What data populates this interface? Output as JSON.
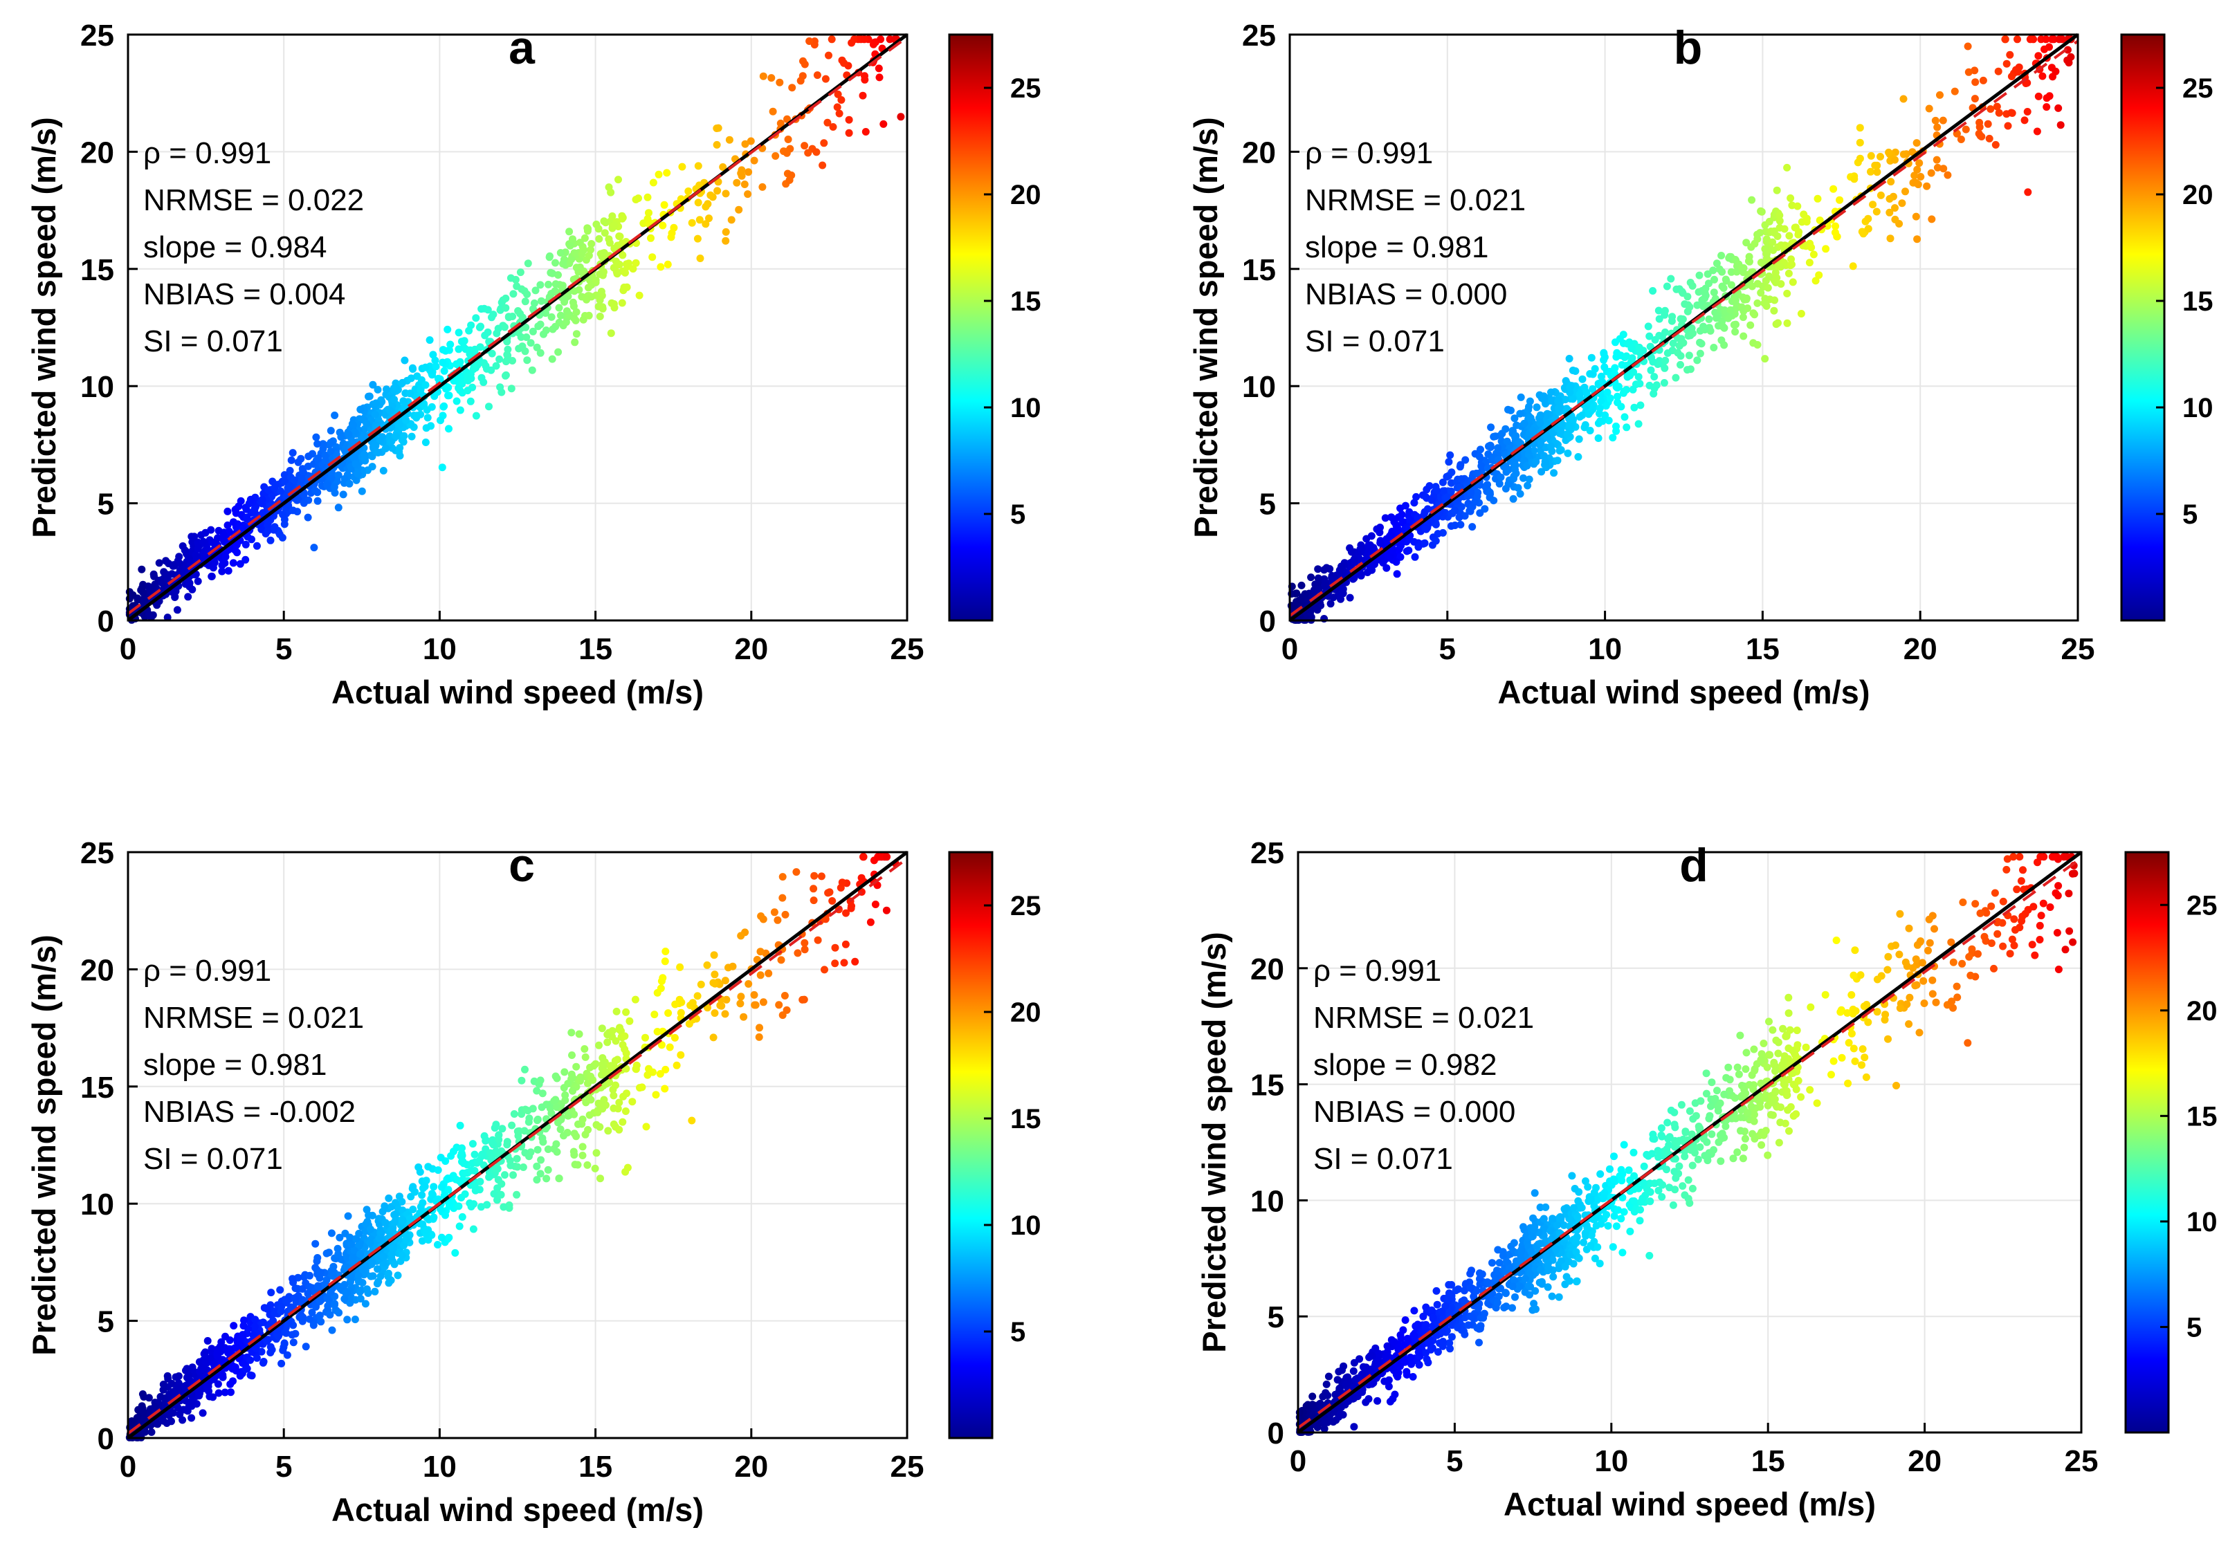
{
  "figure": {
    "colormap": "jet",
    "colors": {
      "identity_line": "#000000",
      "fit_line": "#e02020",
      "grid": "#e6e6e6",
      "axes": "#000000"
    },
    "colorbar": {
      "range": [
        0,
        27.5
      ],
      "ticks": [
        "5",
        "10",
        "15",
        "20",
        "25"
      ]
    }
  },
  "chart_data": [
    {
      "type": "scatter",
      "panel_label": "a",
      "xlabel": "Actual wind speed (m/s)",
      "ylabel": "Predicted wind speed (m/s)",
      "xlim": [
        0,
        25
      ],
      "ylim": [
        0,
        25
      ],
      "xticks": [
        "0",
        "5",
        "10",
        "15",
        "20",
        "25"
      ],
      "yticks": [
        "0",
        "5",
        "10",
        "15",
        "20",
        "25"
      ],
      "grid": true,
      "identity_line": [
        [
          0,
          0
        ],
        [
          25,
          25
        ]
      ],
      "fit_line": {
        "slope": 0.984,
        "intercept": 0.29
      },
      "color_by": "actual wind speed",
      "stats": [
        "ρ = 0.991",
        "NRMSE = 0.022",
        "slope = 0.984",
        "NBIAS = 0.004",
        "SI = 0.071"
      ]
    },
    {
      "type": "scatter",
      "panel_label": "b",
      "xlabel": "Actual wind speed (m/s)",
      "ylabel": "Predicted wind speed (m/s)",
      "xlim": [
        0,
        25
      ],
      "ylim": [
        0,
        25
      ],
      "xticks": [
        "0",
        "5",
        "10",
        "15",
        "20",
        "25"
      ],
      "yticks": [
        "0",
        "5",
        "10",
        "15",
        "20",
        "25"
      ],
      "grid": true,
      "identity_line": [
        [
          0,
          0
        ],
        [
          25,
          25
        ]
      ],
      "fit_line": {
        "slope": 0.981,
        "intercept": 0.2
      },
      "color_by": "actual wind speed",
      "stats": [
        "ρ = 0.991",
        "NRMSE = 0.021",
        "slope = 0.981",
        "NBIAS = 0.000",
        "SI = 0.071"
      ]
    },
    {
      "type": "scatter",
      "panel_label": "c",
      "xlabel": "Actual wind speed (m/s)",
      "ylabel": "Predicted wind speed (m/s)",
      "xlim": [
        0,
        25
      ],
      "ylim": [
        0,
        25
      ],
      "xticks": [
        "0",
        "5",
        "10",
        "15",
        "20",
        "25"
      ],
      "yticks": [
        "0",
        "5",
        "10",
        "15",
        "20",
        "25"
      ],
      "grid": true,
      "identity_line": [
        [
          0,
          0
        ],
        [
          25,
          25
        ]
      ],
      "fit_line": {
        "slope": 0.981,
        "intercept": 0.2
      },
      "color_by": "actual wind speed",
      "stats": [
        "ρ = 0.991",
        "NRMSE = 0.021",
        "slope = 0.981",
        "NBIAS = -0.002",
        "SI = 0.071"
      ]
    },
    {
      "type": "scatter",
      "panel_label": "d",
      "xlabel": "Actual wind speed (m/s)",
      "ylabel": "Predicted wind speed (m/s)",
      "xlim": [
        0,
        25
      ],
      "ylim": [
        0,
        25
      ],
      "xticks": [
        "0",
        "5",
        "10",
        "15",
        "20",
        "25"
      ],
      "yticks": [
        "0",
        "5",
        "10",
        "15",
        "20",
        "25"
      ],
      "grid": true,
      "identity_line": [
        [
          0,
          0
        ],
        [
          25,
          25
        ]
      ],
      "fit_line": {
        "slope": 0.982,
        "intercept": 0.2
      },
      "color_by": "actual wind speed",
      "stats": [
        "ρ = 0.991",
        "NRMSE = 0.021",
        "slope = 0.982",
        "NBIAS = 0.000",
        "SI = 0.071"
      ]
    }
  ]
}
